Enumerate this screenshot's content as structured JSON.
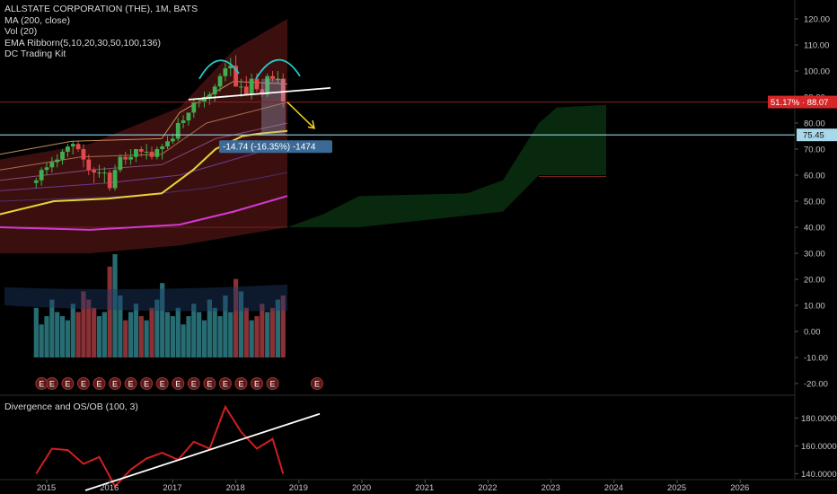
{
  "header": {
    "symbol_line": "ALLSTATE CORPORATION (THE), 1M, BATS",
    "indicators": [
      "MA (200, close)",
      "Vol (20)",
      "EMA Ribborn(5,10,20,30,50,100,136)",
      "DC Trading Kit"
    ]
  },
  "sub_pane": {
    "title": "Divergence and OS/OB (100, 3)"
  },
  "colors": {
    "background": "#000000",
    "bull": "#3fae4e",
    "bear": "#e0494d",
    "target_line": "#8fd3e8",
    "price_badge": "#d62728",
    "target_badge": "#a9d8ea",
    "measure_label": "#3b6a96",
    "ma200": "#e7d53a",
    "ema_ribbon_long": "#d13ad6",
    "cloud_red": "#6d1b1b",
    "cloud_green": "#0c3a12",
    "arc": "#27c9c9"
  },
  "chart_data": [
    {
      "type": "candlestick",
      "title": "ALLSTATE CORPORATION (THE), 1M, BATS",
      "x_axis": {
        "ticks": [
          "2015",
          "2016",
          "2017",
          "2018",
          "2019",
          "2020",
          "2021",
          "2022",
          "2023",
          "2024",
          "2025",
          "2026"
        ]
      },
      "y_axis": {
        "side": "right",
        "ticks": [
          "120.00",
          "110.00",
          "100.00",
          "90.00",
          "80.00",
          "70.00",
          "60.00",
          "50.00",
          "40.00",
          "30.00",
          "20.00",
          "10.00",
          "0.00",
          "-10.00",
          "-20.00"
        ],
        "range": [
          -23,
          126
        ]
      },
      "series": [
        {
          "kind": "ohlc",
          "x": [
            "2014-11",
            "2014-12",
            "2015-01",
            "2015-02",
            "2015-03",
            "2015-04",
            "2015-05",
            "2015-06",
            "2015-07",
            "2015-08",
            "2015-09",
            "2015-10",
            "2015-11",
            "2015-12",
            "2016-01",
            "2016-02",
            "2016-03",
            "2016-04",
            "2016-05",
            "2016-06",
            "2016-07",
            "2016-08",
            "2016-09",
            "2016-10",
            "2016-11",
            "2016-12",
            "2017-01",
            "2017-02",
            "2017-03",
            "2017-04",
            "2017-05",
            "2017-06",
            "2017-07",
            "2017-08",
            "2017-09",
            "2017-10",
            "2017-11",
            "2017-12",
            "2018-01",
            "2018-02",
            "2018-03",
            "2018-04",
            "2018-05",
            "2018-06",
            "2018-07",
            "2018-08",
            "2018-09",
            "2018-10"
          ],
          "open": [
            57,
            58,
            62,
            63,
            65,
            66,
            69,
            71,
            72,
            70,
            66,
            62,
            61,
            61,
            61,
            55,
            62,
            67,
            66,
            67,
            70,
            69,
            69,
            67,
            70,
            71,
            73,
            74,
            80,
            81,
            84,
            88,
            88,
            90,
            91,
            94,
            98,
            101,
            102,
            94,
            94,
            91,
            97,
            93,
            91,
            98,
            97,
            97
          ],
          "high": [
            59,
            63,
            65,
            67,
            68,
            70,
            72,
            73,
            73,
            72,
            68,
            63,
            64,
            63,
            62,
            64,
            68,
            69,
            70,
            70,
            71,
            72,
            71,
            71,
            72,
            75,
            76,
            82,
            83,
            84,
            89,
            89,
            92,
            92,
            95,
            99,
            103,
            105,
            106,
            97,
            98,
            99,
            99,
            95,
            99,
            100,
            100,
            99
          ],
          "low": [
            55,
            56,
            60,
            61,
            63,
            64,
            67,
            68,
            69,
            63,
            60,
            57,
            59,
            57,
            54,
            54,
            61,
            64,
            64,
            65,
            67,
            66,
            66,
            66,
            66,
            70,
            72,
            73,
            78,
            79,
            82,
            86,
            86,
            87,
            88,
            92,
            96,
            98,
            94,
            90,
            91,
            89,
            92,
            90,
            90,
            96,
            95,
            86
          ],
          "close": [
            58,
            62,
            63,
            65,
            66,
            69,
            71,
            72,
            70,
            66,
            62,
            61,
            61,
            61,
            55,
            62,
            67,
            66,
            67,
            70,
            69,
            69,
            67,
            70,
            71,
            73,
            74,
            80,
            81,
            84,
            88,
            88,
            90,
            91,
            94,
            98,
            101,
            102,
            94,
            94,
            91,
            97,
            93,
            91,
            98,
            97,
            97,
            88
          ]
        },
        {
          "kind": "volume",
          "values": [
            12,
            8,
            10,
            14,
            11,
            10,
            9,
            13,
            11,
            16,
            14,
            12,
            10,
            11,
            22,
            25,
            15,
            9,
            11,
            13,
            10,
            9,
            12,
            14,
            18,
            11,
            10,
            12,
            8,
            10,
            13,
            11,
            9,
            14,
            12,
            10,
            15,
            11,
            19,
            16,
            12,
            9,
            10,
            13,
            11,
            12,
            14,
            15
          ]
        }
      ],
      "annotations": {
        "current_price": "51.17% · 88.07",
        "target_price": "75.45",
        "measure": "-14.74 (-16.35%) -1474"
      },
      "earnings_markers": "E"
    },
    {
      "type": "line",
      "title": "Divergence and OS/OB (100, 3)",
      "y_axis": {
        "side": "right",
        "ticks": [
          "180.0000",
          "160.0000",
          "140.0000"
        ],
        "range": [
          128,
          190
        ]
      },
      "series": [
        {
          "x": [
            "2014-11",
            "2015-02",
            "2015-05",
            "2015-08",
            "2015-11",
            "2016-02",
            "2016-05",
            "2016-08",
            "2016-11",
            "2017-02",
            "2017-05",
            "2017-08",
            "2017-11",
            "2018-02",
            "2018-05",
            "2018-08",
            "2018-10"
          ],
          "values": [
            140,
            158,
            157,
            147,
            152,
            131,
            143,
            151,
            155,
            150,
            163,
            158,
            188,
            170,
            158,
            165,
            140
          ]
        }
      ]
    }
  ]
}
